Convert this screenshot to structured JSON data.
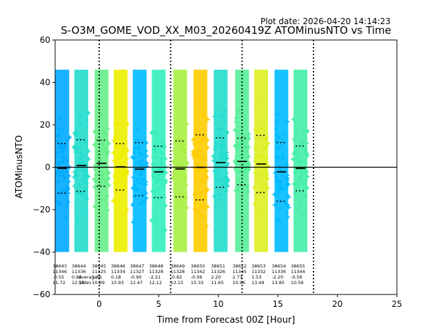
{
  "plot_date": "Plot date: 2026-04-20 14:14:23",
  "chart_data": {
    "type": "scatter",
    "title": "S-O3M_GOME_VOD_XX_M03_20260419Z ATOMinusNTO vs Time",
    "xlabel": "Time from Forecast 00Z [Hour]",
    "ylabel": "ATOMinusNTO",
    "xlim": [
      -3.7,
      25
    ],
    "ylim": [
      -60,
      60
    ],
    "xticks": [
      0,
      5,
      10,
      15,
      20,
      25
    ],
    "yticks": [
      -60,
      -40,
      -20,
      0,
      20,
      40,
      60
    ],
    "grid": false,
    "zero_line": 0,
    "forecast_boundaries": [
      0,
      6,
      12,
      18
    ],
    "stats_row_labels": [
      "",
      "",
      "Average",
      "Stdev"
    ],
    "orbits": [
      {
        "orbit": "38643",
        "x": -3.1,
        "n": "11346",
        "mean": -0.55,
        "stdev": 11.72,
        "color": "#00aaff"
      },
      {
        "orbit": "38644",
        "x": -1.5,
        "n": "11336",
        "mean": 0.82,
        "stdev": 12.18,
        "color": "#22ddcc"
      },
      {
        "orbit": "38645",
        "x": 0.2,
        "n": "11325",
        "mean": 1.86,
        "stdev": 10.89,
        "color": "#66ee88"
      },
      {
        "orbit": "38646",
        "x": 1.8,
        "n": "11334",
        "mean": 0.18,
        "stdev": 10.93,
        "color": "#eeee00"
      },
      {
        "orbit": "38647",
        "x": 3.4,
        "n": "11327",
        "mean": -0.9,
        "stdev": 12.47,
        "color": "#00bbff"
      },
      {
        "orbit": "38648",
        "x": 5.0,
        "n": "11328",
        "mean": -2.21,
        "stdev": 12.12,
        "color": "#33eebb"
      },
      {
        "orbit": "38649",
        "x": 6.8,
        "n": "11328",
        "mean": -0.82,
        "stdev": 13.15,
        "color": "#aaf044"
      },
      {
        "orbit": "38650",
        "x": 8.5,
        "n": "11342",
        "mean": -0.06,
        "stdev": 15.33,
        "color": "#ffcc00"
      },
      {
        "orbit": "38651",
        "x": 10.2,
        "n": "11326",
        "mean": 2.2,
        "stdev": 11.65,
        "color": "#22ddcc"
      },
      {
        "orbit": "38652",
        "x": 12.0,
        "n": "11345",
        "mean": 2.73,
        "stdev": 10.96,
        "color": "#55ee99"
      },
      {
        "orbit": "38653",
        "x": 13.6,
        "n": "11332",
        "mean": 1.53,
        "stdev": 13.49,
        "color": "#ddf022"
      },
      {
        "orbit": "38654",
        "x": 15.3,
        "n": "11336",
        "mean": -2.2,
        "stdev": 13.85,
        "color": "#00bbff"
      },
      {
        "orbit": "38655",
        "x": 16.9,
        "n": "11344",
        "mean": -0.56,
        "stdev": 10.56,
        "color": "#44eeaa"
      }
    ]
  }
}
